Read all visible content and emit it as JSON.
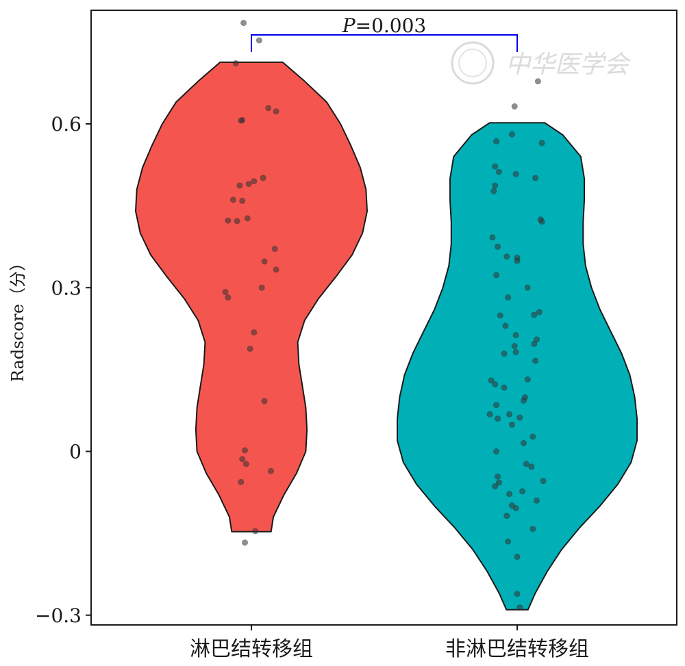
{
  "chart_data": {
    "type": "violin",
    "ylabel": "Radscore（分）",
    "ylim": [
      -0.32,
      0.81
    ],
    "yticks": [
      {
        "value": -0.3,
        "label": "−0.3"
      },
      {
        "value": 0,
        "label": "0"
      },
      {
        "value": 0.3,
        "label": "0.3"
      },
      {
        "value": 0.6,
        "label": "0.6"
      }
    ],
    "categories": [
      "淋巴结转移组",
      "非淋巴结转移组"
    ],
    "grid": false,
    "series": [
      {
        "name": "淋巴结转移组",
        "color": "#f4564f",
        "profile": [
          [
            -0.147,
            0.17
          ],
          [
            -0.12,
            0.19
          ],
          [
            -0.08,
            0.28
          ],
          [
            -0.04,
            0.39
          ],
          [
            0.0,
            0.47
          ],
          [
            0.04,
            0.48
          ],
          [
            0.08,
            0.47
          ],
          [
            0.12,
            0.44
          ],
          [
            0.16,
            0.41
          ],
          [
            0.2,
            0.4
          ],
          [
            0.24,
            0.46
          ],
          [
            0.28,
            0.58
          ],
          [
            0.32,
            0.73
          ],
          [
            0.36,
            0.87
          ],
          [
            0.4,
            0.96
          ],
          [
            0.44,
            1.0
          ],
          [
            0.48,
            0.99
          ],
          [
            0.52,
            0.94
          ],
          [
            0.56,
            0.86
          ],
          [
            0.6,
            0.77
          ],
          [
            0.64,
            0.65
          ],
          [
            0.68,
            0.45
          ],
          [
            0.713,
            0.27
          ]
        ],
        "points": [
          [
            0.785,
            -0.06
          ],
          [
            0.711,
            -0.12
          ],
          [
            0.607,
            -0.07
          ],
          [
            0.606,
            -0.08
          ],
          [
            0.629,
            0.13
          ],
          [
            0.623,
            0.19
          ],
          [
            0.501,
            0.09
          ],
          [
            0.495,
            0.02
          ],
          [
            0.49,
            -0.02
          ],
          [
            0.487,
            -0.09
          ],
          [
            0.461,
            -0.14
          ],
          [
            0.459,
            -0.07
          ],
          [
            0.427,
            -0.03
          ],
          [
            0.423,
            -0.18
          ],
          [
            0.422,
            -0.11
          ],
          [
            0.371,
            0.18
          ],
          [
            0.348,
            0.1
          ],
          [
            0.333,
            0.19
          ],
          [
            0.3,
            0.08
          ],
          [
            0.292,
            -0.2
          ],
          [
            0.282,
            -0.18
          ],
          [
            0.218,
            0.02
          ],
          [
            0.188,
            -0.01
          ],
          [
            0.092,
            0.1
          ],
          [
            0.002,
            -0.05
          ],
          [
            -0.014,
            -0.07
          ],
          [
            -0.023,
            -0.04
          ],
          [
            -0.036,
            0.15
          ],
          [
            -0.056,
            -0.08
          ],
          [
            -0.146,
            0.03
          ],
          [
            -0.167,
            -0.05
          ],
          [
            0.753,
            0.06
          ]
        ]
      },
      {
        "name": "非淋巴结转移组",
        "color": "#00b0b6",
        "profile": [
          [
            -0.29,
            0.09
          ],
          [
            -0.26,
            0.15
          ],
          [
            -0.22,
            0.25
          ],
          [
            -0.18,
            0.37
          ],
          [
            -0.14,
            0.52
          ],
          [
            -0.1,
            0.69
          ],
          [
            -0.06,
            0.84
          ],
          [
            -0.02,
            0.95
          ],
          [
            0.02,
            1.0
          ],
          [
            0.06,
            1.0
          ],
          [
            0.1,
            0.98
          ],
          [
            0.14,
            0.94
          ],
          [
            0.18,
            0.87
          ],
          [
            0.22,
            0.78
          ],
          [
            0.26,
            0.69
          ],
          [
            0.3,
            0.62
          ],
          [
            0.34,
            0.57
          ],
          [
            0.38,
            0.55
          ],
          [
            0.42,
            0.55
          ],
          [
            0.46,
            0.56
          ],
          [
            0.5,
            0.56
          ],
          [
            0.54,
            0.53
          ],
          [
            0.58,
            0.38
          ],
          [
            0.602,
            0.23
          ]
        ],
        "points": [
          [
            0.678,
            0.16
          ],
          [
            0.632,
            -0.02
          ],
          [
            0.581,
            -0.04
          ],
          [
            0.568,
            -0.16
          ],
          [
            0.565,
            0.19
          ],
          [
            0.522,
            -0.17
          ],
          [
            0.512,
            -0.14
          ],
          [
            0.508,
            -0.01
          ],
          [
            0.501,
            0.14
          ],
          [
            0.487,
            -0.17
          ],
          [
            0.477,
            -0.18
          ],
          [
            0.425,
            0.18
          ],
          [
            0.421,
            0.19
          ],
          [
            0.392,
            -0.19
          ],
          [
            0.375,
            -0.15
          ],
          [
            0.357,
            -0.08
          ],
          [
            0.355,
            0.0
          ],
          [
            0.349,
            0.0
          ],
          [
            0.323,
            -0.16
          ],
          [
            0.3,
            0.08
          ],
          [
            0.282,
            -0.07
          ],
          [
            0.255,
            0.17
          ],
          [
            0.25,
            0.13
          ],
          [
            0.249,
            -0.13
          ],
          [
            0.23,
            -0.09
          ],
          [
            0.213,
            -0.01
          ],
          [
            0.205,
            0.15
          ],
          [
            0.197,
            0.13
          ],
          [
            0.193,
            -0.02
          ],
          [
            0.182,
            -0.01
          ],
          [
            0.179,
            -0.1
          ],
          [
            0.166,
            0.14
          ],
          [
            0.132,
            0.08
          ],
          [
            0.13,
            -0.2
          ],
          [
            0.123,
            -0.17
          ],
          [
            0.117,
            -0.1
          ],
          [
            0.099,
            0.06
          ],
          [
            0.093,
            0.05
          ],
          [
            0.085,
            -0.16
          ],
          [
            0.068,
            -0.21
          ],
          [
            0.068,
            -0.06
          ],
          [
            0.062,
            0.02
          ],
          [
            0.06,
            -0.15
          ],
          [
            0.049,
            -0.04
          ],
          [
            0.027,
            0.12
          ],
          [
            0.015,
            0.05
          ],
          [
            0.0,
            -0.16
          ],
          [
            -0.023,
            0.07
          ],
          [
            -0.028,
            0.11
          ],
          [
            -0.046,
            -0.15
          ],
          [
            -0.054,
            0.2
          ],
          [
            -0.057,
            -0.14
          ],
          [
            -0.064,
            -0.17
          ],
          [
            -0.078,
            -0.06
          ],
          [
            -0.073,
            0.04
          ],
          [
            -0.09,
            0.15
          ],
          [
            -0.099,
            -0.04
          ],
          [
            -0.104,
            -0.01
          ],
          [
            -0.118,
            -0.08
          ],
          [
            -0.142,
            0.12
          ],
          [
            -0.165,
            -0.07
          ],
          [
            -0.193,
            0.0
          ],
          [
            -0.261,
            0.0
          ],
          [
            -0.286,
            0.02
          ]
        ]
      }
    ],
    "comparison": {
      "from": 0,
      "to": 1,
      "label_italic": "P",
      "label_value": "=0.003",
      "bracket_color": "#0000ee"
    }
  },
  "watermark": {
    "text": "中华医学会"
  }
}
